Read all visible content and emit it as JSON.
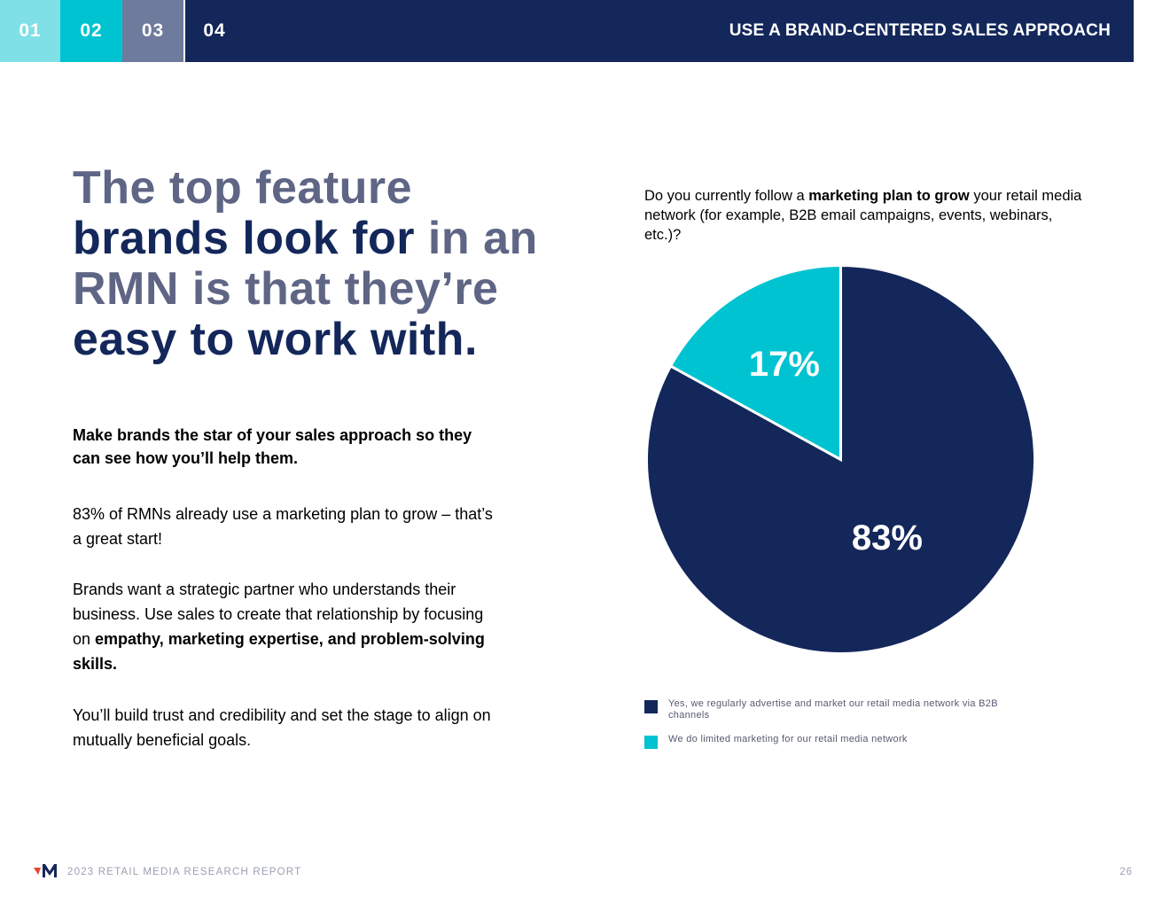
{
  "header": {
    "tabs": [
      {
        "label": "01",
        "color": "#7fe0e6"
      },
      {
        "label": "02",
        "color": "#00c3d1"
      },
      {
        "label": "03",
        "color": "#6e7b9c"
      },
      {
        "label": "04",
        "color": "#13275a"
      }
    ],
    "section_title": "USE A BRAND-CENTERED SALES APPROACH"
  },
  "headline": {
    "parts": [
      "The top feature",
      "brands look for",
      " in an",
      "RMN",
      " is that they’re",
      "easy to work with."
    ]
  },
  "body": {
    "subhead": "Make brands the star of your sales approach so they can see how you’ll help them.",
    "p1": "83% of RMNs already use a marketing plan to grow – that’s a great start!",
    "p2_plain": "Brands want a strategic partner who understands their business. Use sales to create that relationship by focusing on ",
    "p2_bold": "empathy, marketing expertise, and problem-solving skills.",
    "p3": "You’ll build trust and credibility and set the stage to align on mutually beneficial goals."
  },
  "chart_question": {
    "before": "Do you currently follow a ",
    "bold": "marketing plan to grow",
    "after": " your retail media network (for example, B2B email campaigns, events, webinars, etc.)?"
  },
  "chart_data": {
    "type": "pie",
    "title": "",
    "categories": [
      "Yes, we regularly advertise and market our retail media network via B2B channels",
      "We do limited marketing for our retail media network"
    ],
    "values": [
      83,
      17
    ],
    "labels": [
      "83%",
      "17%"
    ],
    "colors": [
      "#13275a",
      "#00c3d1"
    ],
    "legend_position": "bottom-left"
  },
  "legend": [
    {
      "label": "Yes, we regularly advertise and market our retail media network via B2B channels",
      "color": "#13275a"
    },
    {
      "label": "We do limited marketing for our retail media network",
      "color": "#00c3d1"
    }
  ],
  "footer": {
    "report_title": "2023 RETAIL MEDIA RESEARCH REPORT",
    "page_number": "26"
  },
  "colors": {
    "navy": "#13275a",
    "gray_text": "#5f6584",
    "accent_red": "#e8452e"
  }
}
